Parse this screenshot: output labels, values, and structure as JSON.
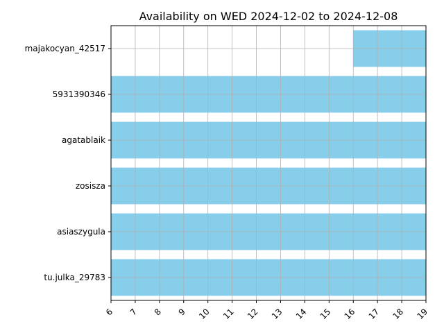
{
  "chart_data": {
    "type": "bar",
    "orientation": "horizontal",
    "title": "Availability on WED 2024-12-02 to 2024-12-08",
    "xlabel": "",
    "ylabel": "",
    "xlim": [
      6,
      19
    ],
    "x_ticks": [
      "6",
      "7",
      "8",
      "9",
      "10",
      "11",
      "12",
      "13",
      "14",
      "15",
      "16",
      "17",
      "18",
      "19"
    ],
    "grid": true,
    "bar_color": "#87CEEB",
    "grid_color": "#b0b0b0",
    "categories": [
      "majakocyan_42517",
      "5931390346",
      "agatablaik",
      "zosisza",
      "asiaszygula",
      "tu.julka_29783"
    ],
    "bars": [
      {
        "label": "majakocyan_42517",
        "start": 16,
        "end": 19
      },
      {
        "label": "5931390346",
        "start": 6,
        "end": 19
      },
      {
        "label": "agatablaik",
        "start": 6,
        "end": 19
      },
      {
        "label": "zosisza",
        "start": 6,
        "end": 19
      },
      {
        "label": "asiaszygula",
        "start": 6,
        "end": 19
      },
      {
        "label": "tu.julka_29783",
        "start": 6,
        "end": 19
      }
    ]
  }
}
